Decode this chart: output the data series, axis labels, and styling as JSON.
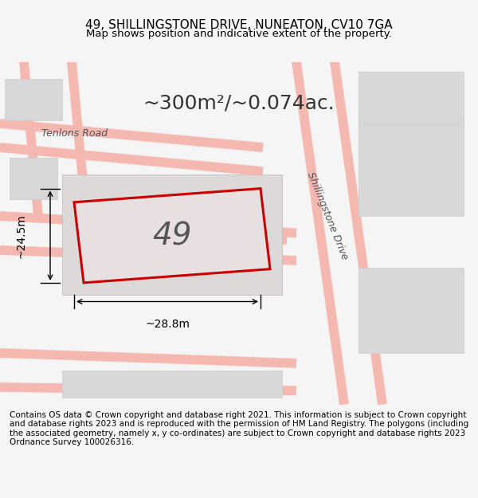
{
  "title": "49, SHILLINGSTONE DRIVE, NUNEATON, CV10 7GA",
  "subtitle": "Map shows position and indicative extent of the property.",
  "area_label": "~300m²/~0.074ac.",
  "plot_number": "49",
  "dim_horizontal": "~28.8m",
  "dim_vertical": "~24.5m",
  "road_label_left": "Tenlons Road",
  "road_label_right": "Shillingstone Drive",
  "copyright_text": "Contains OS data © Crown copyright and database right 2021. This information is subject to Crown copyright and database rights 2023 and is reproduced with the permission of HM Land Registry. The polygons (including the associated geometry, namely x, y co-ordinates) are subject to Crown copyright and database rights 2023 Ordnance Survey 100026316.",
  "bg_color": "#f5f5f5",
  "map_bg": "#f0eeee",
  "road_color": "#f5b8b0",
  "road_fill": "#e8e8e8",
  "plot_color": "#cc0000",
  "plot_fill": "#e8e5e5",
  "title_fontsize": 11,
  "subtitle_fontsize": 9.5,
  "area_fontsize": 18,
  "plot_num_fontsize": 28,
  "dim_fontsize": 10,
  "road_fontsize": 9,
  "copyright_fontsize": 7.5
}
